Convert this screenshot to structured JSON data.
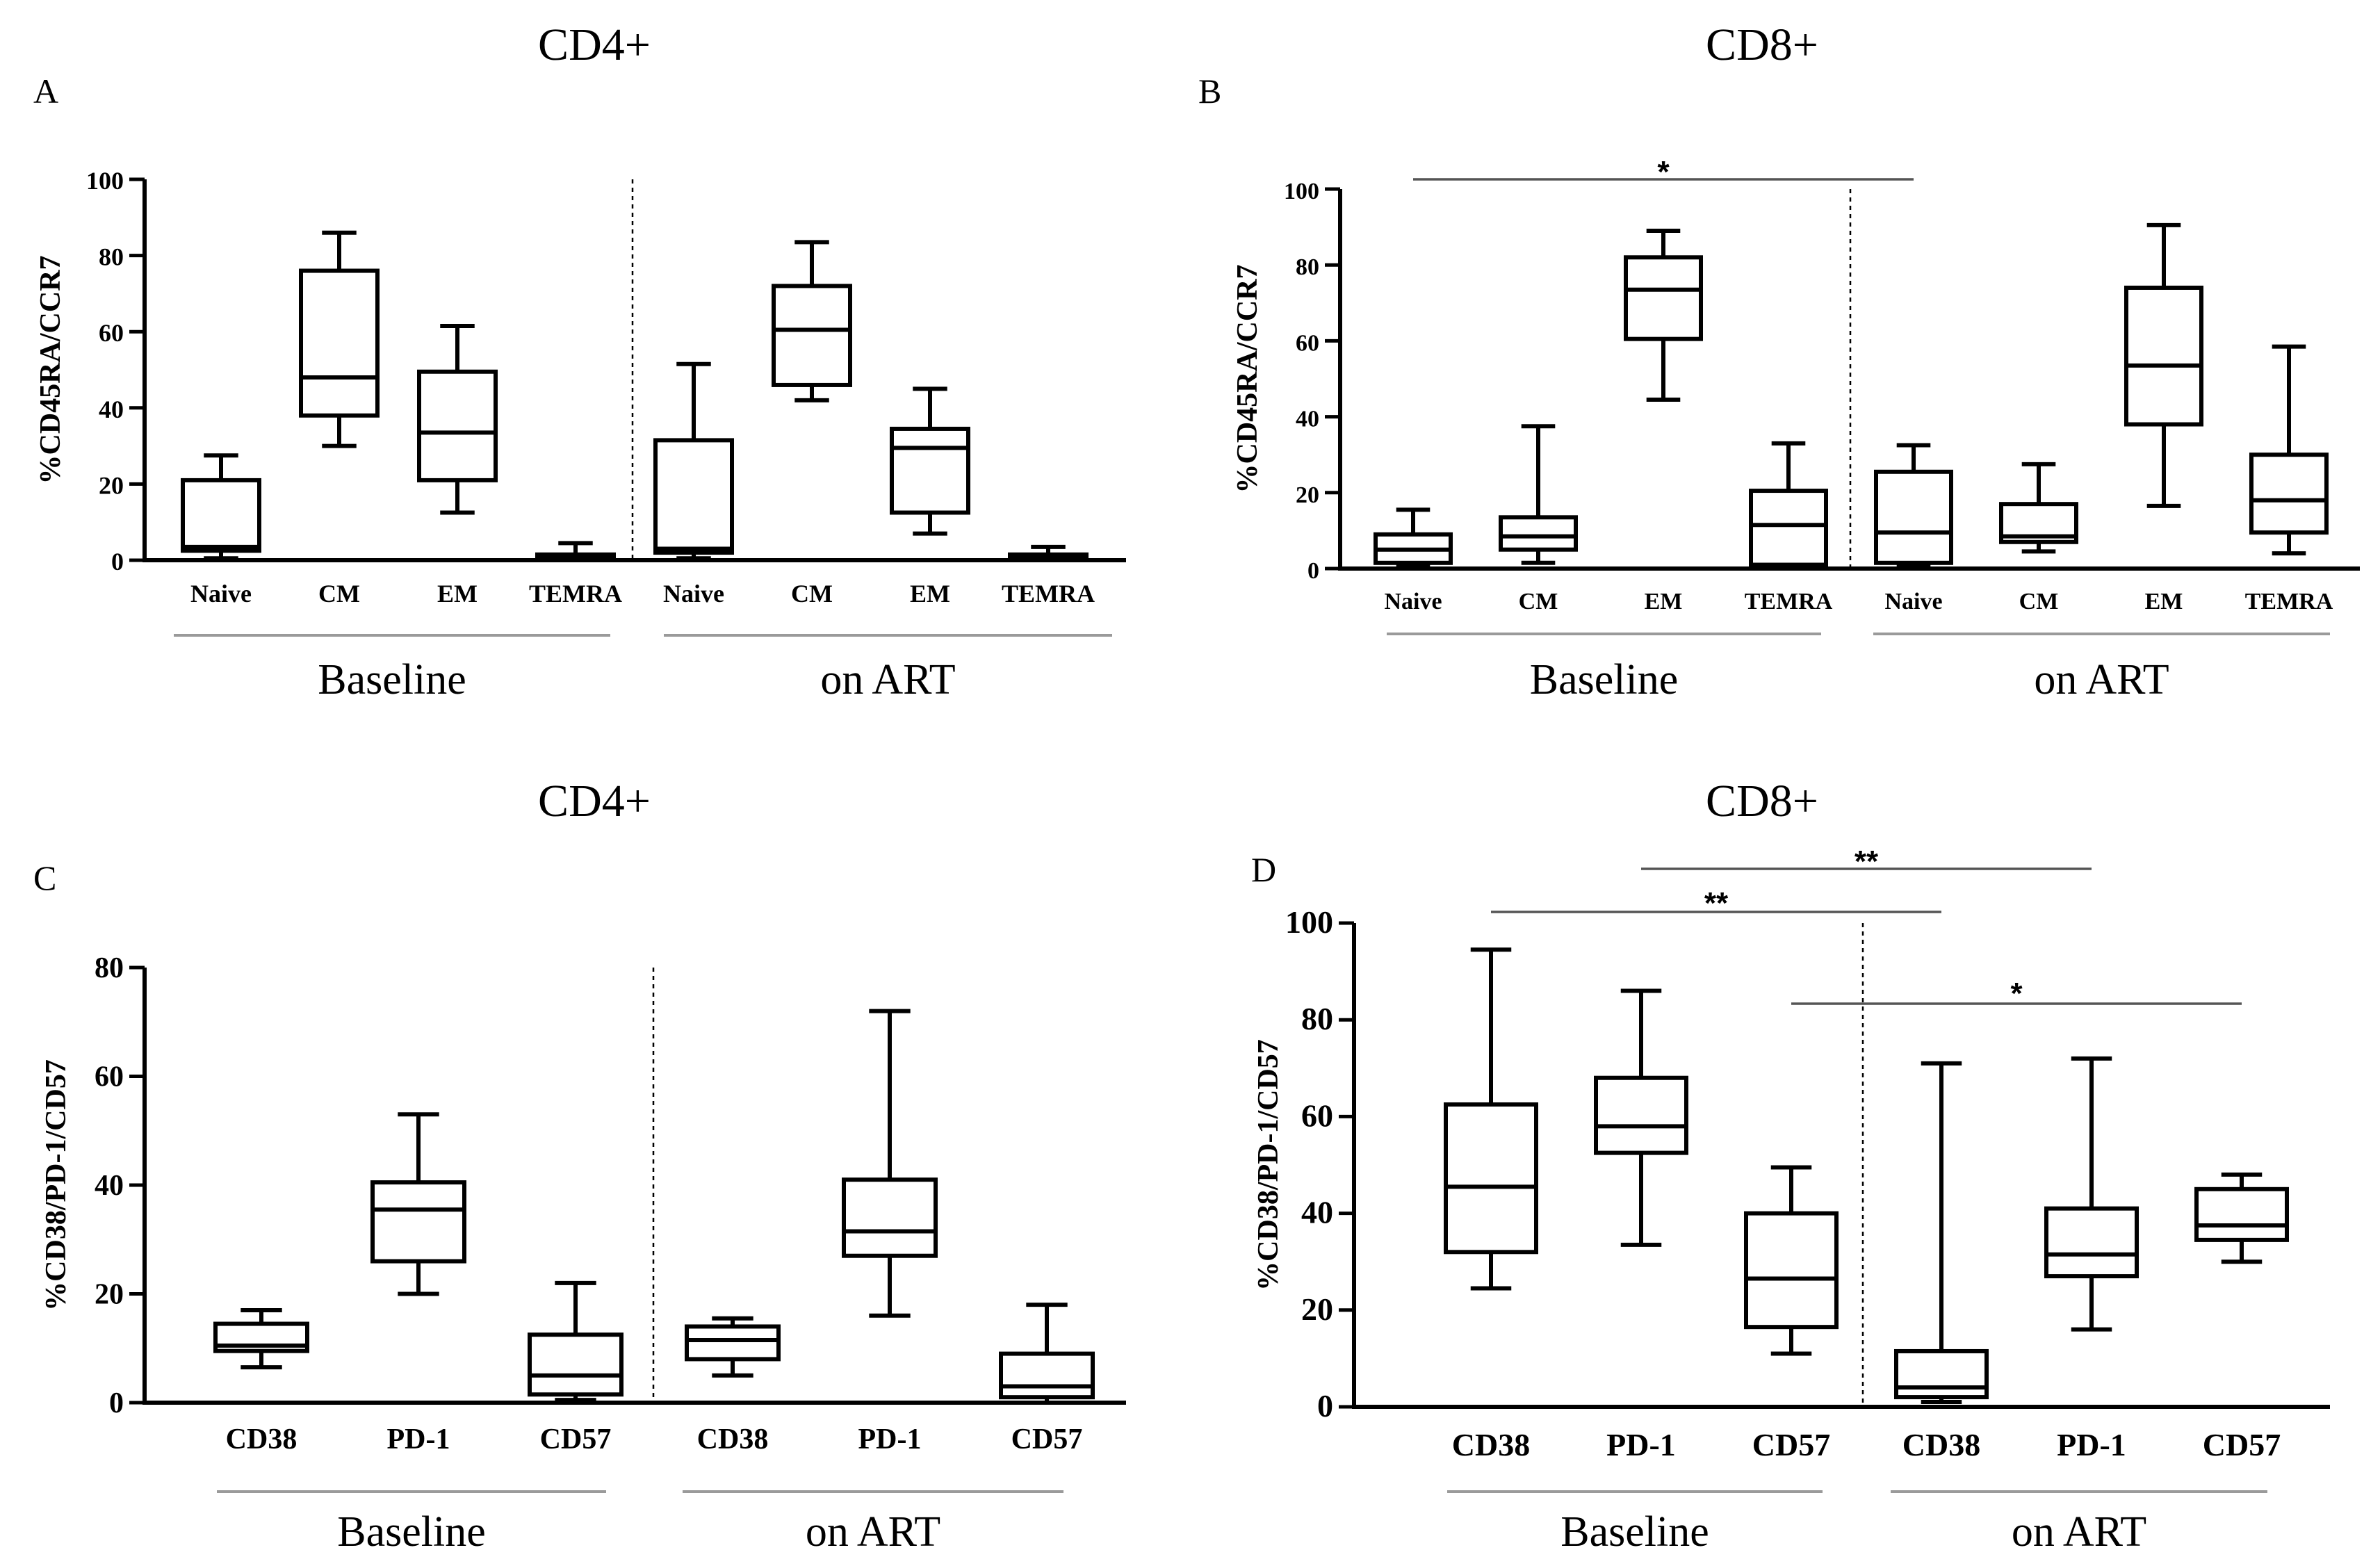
{
  "figure": {
    "panels": [
      {
        "letter": "A",
        "title": "CD4+"
      },
      {
        "letter": "B",
        "title": "CD8+"
      },
      {
        "letter": "C",
        "title": "CD4+"
      },
      {
        "letter": "D",
        "title": "CD8+"
      }
    ]
  },
  "chart_data": [
    {
      "type": "box",
      "panel": "A",
      "title": "CD4+",
      "ylabel": "%CD45RA/CCR7",
      "ylim": [
        0,
        100
      ],
      "yticks": [
        0,
        20,
        40,
        60,
        80,
        100
      ],
      "groups": [
        "Baseline",
        "on ART"
      ],
      "categories": [
        "Naive",
        "CM",
        "EM",
        "TEMRA",
        "Naive",
        "CM",
        "EM",
        "TEMRA"
      ],
      "boxes": [
        {
          "min": 0.5,
          "q1": 2.5,
          "median": 3.5,
          "q3": 21,
          "max": 27.5
        },
        {
          "min": 30,
          "q1": 38,
          "median": 48,
          "q3": 76,
          "max": 86
        },
        {
          "min": 12.5,
          "q1": 21,
          "median": 33.5,
          "q3": 49.5,
          "max": 61.5
        },
        {
          "min": 0,
          "q1": 0.5,
          "median": 1,
          "q3": 1.5,
          "max": 4.5
        },
        {
          "min": 0.5,
          "q1": 2,
          "median": 3,
          "q3": 31.5,
          "max": 51.5
        },
        {
          "min": 42,
          "q1": 46,
          "median": 60.5,
          "q3": 72,
          "max": 83.5
        },
        {
          "min": 7,
          "q1": 12.5,
          "median": 29.5,
          "q3": 34.5,
          "max": 45
        },
        {
          "min": 0,
          "q1": 0.5,
          "median": 1,
          "q3": 1.5,
          "max": 3.5
        }
      ],
      "annotations": []
    },
    {
      "type": "box",
      "panel": "B",
      "title": "CD8+",
      "ylabel": "%CD45RA/CCR7",
      "ylim": [
        0,
        100
      ],
      "yticks": [
        0,
        20,
        40,
        60,
        80,
        100
      ],
      "groups": [
        "Baseline",
        "on ART"
      ],
      "categories": [
        "Naive",
        "CM",
        "EM",
        "TEMRA",
        "Naive",
        "CM",
        "EM",
        "TEMRA"
      ],
      "boxes": [
        {
          "min": 0.5,
          "q1": 1.5,
          "median": 5,
          "q3": 9,
          "max": 15.5
        },
        {
          "min": 1.5,
          "q1": 5,
          "median": 8.5,
          "q3": 13.5,
          "max": 37.5
        },
        {
          "min": 44.5,
          "q1": 60.5,
          "median": 73.5,
          "q3": 82,
          "max": 89
        },
        {
          "min": 0.5,
          "q1": 1,
          "median": 11.5,
          "q3": 20.5,
          "max": 33
        },
        {
          "min": 0.5,
          "q1": 1.5,
          "median": 9.5,
          "q3": 25.5,
          "max": 32.5
        },
        {
          "min": 4.5,
          "q1": 7,
          "median": 8.5,
          "q3": 17,
          "max": 27.5
        },
        {
          "min": 16.5,
          "q1": 38,
          "median": 53.5,
          "q3": 74,
          "max": 90.5
        },
        {
          "min": 4,
          "q1": 9.5,
          "median": 18,
          "q3": 30,
          "max": 58.5
        }
      ],
      "annotations": [
        {
          "text": "*",
          "from": 0,
          "to": 4
        }
      ]
    },
    {
      "type": "box",
      "panel": "C",
      "title": "CD4+",
      "ylabel": "%CD38/PD-1/CD57",
      "ylim": [
        0,
        80
      ],
      "yticks": [
        0,
        20,
        40,
        60,
        80
      ],
      "groups": [
        "Baseline",
        "on ART"
      ],
      "categories": [
        "CD38",
        "PD-1",
        "CD57",
        "CD38",
        "PD-1",
        "CD57"
      ],
      "boxes": [
        {
          "min": 6.5,
          "q1": 9.5,
          "median": 10.5,
          "q3": 14.5,
          "max": 17
        },
        {
          "min": 20,
          "q1": 26,
          "median": 35.5,
          "q3": 40.5,
          "max": 53
        },
        {
          "min": 0.5,
          "q1": 1.5,
          "median": 5,
          "q3": 12.5,
          "max": 22
        },
        {
          "min": 5,
          "q1": 8,
          "median": 11.5,
          "q3": 14,
          "max": 15.5
        },
        {
          "min": 16,
          "q1": 27,
          "median": 31.5,
          "q3": 41,
          "max": 72
        },
        {
          "min": 0,
          "q1": 1,
          "median": 3,
          "q3": 9,
          "max": 18
        }
      ],
      "annotations": []
    },
    {
      "type": "box",
      "panel": "D",
      "title": "CD8+",
      "ylabel": "%CD38/PD-1/CD57",
      "ylim": [
        0,
        100
      ],
      "yticks": [
        0,
        20,
        40,
        60,
        80,
        100
      ],
      "groups": [
        "Baseline",
        "on ART"
      ],
      "categories": [
        "CD38",
        "PD-1",
        "CD57",
        "CD38",
        "PD-1",
        "CD57"
      ],
      "boxes": [
        {
          "min": 24.5,
          "q1": 32,
          "median": 45.5,
          "q3": 62.5,
          "max": 94.5
        },
        {
          "min": 33.5,
          "q1": 52.5,
          "median": 58,
          "q3": 68,
          "max": 86
        },
        {
          "min": 11,
          "q1": 16.5,
          "median": 26.5,
          "q3": 40,
          "max": 49.5
        },
        {
          "min": 1,
          "q1": 2,
          "median": 4,
          "q3": 11.5,
          "max": 71
        },
        {
          "min": 16,
          "q1": 27,
          "median": 31.5,
          "q3": 41,
          "max": 72
        },
        {
          "min": 30,
          "q1": 34.5,
          "median": 37.5,
          "q3": 45,
          "max": 48
        }
      ],
      "annotations": [
        {
          "text": "**",
          "from": 1,
          "to": 4
        },
        {
          "text": "**",
          "from": 0,
          "to": 3
        },
        {
          "text": "*",
          "from": 2,
          "to": 5
        }
      ]
    }
  ]
}
